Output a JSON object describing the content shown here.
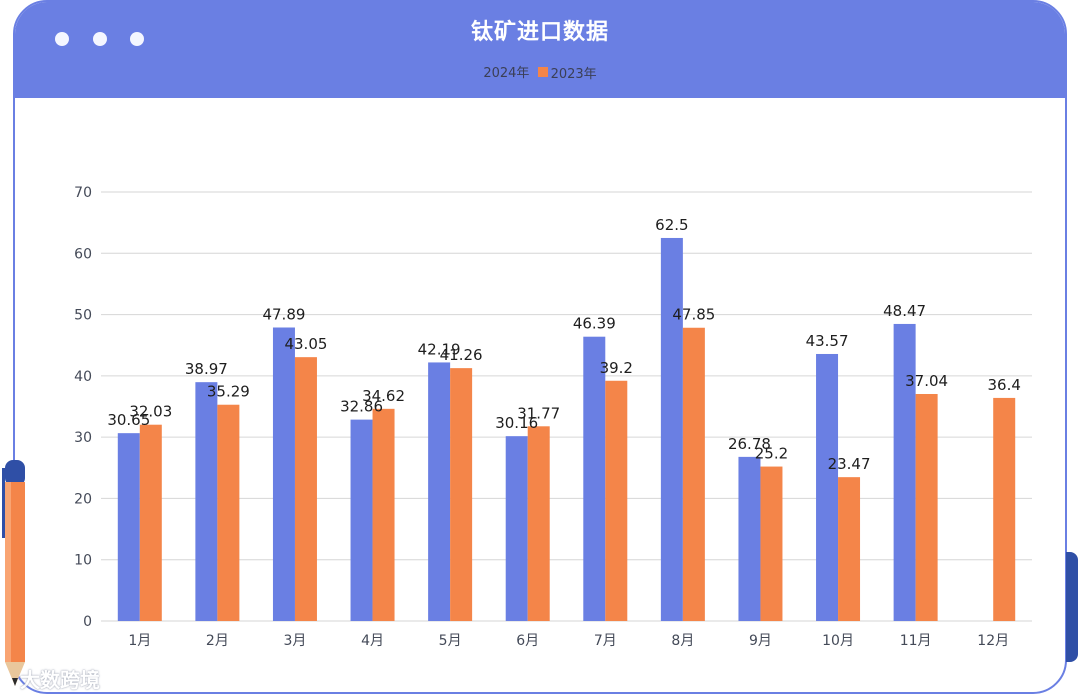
{
  "header": {
    "title": "钛矿进口数据"
  },
  "colors": {
    "series_2024": "#6a7fe3",
    "series_2023": "#f48549",
    "frame": "#6a7fe3",
    "grid": "#d6d6d6"
  },
  "watermark": "大数跨境",
  "chart_data": {
    "type": "bar",
    "title": "钛矿进口数据",
    "categories": [
      "1月",
      "2月",
      "3月",
      "4月",
      "5月",
      "6月",
      "7月",
      "8月",
      "9月",
      "10月",
      "11月",
      "12月"
    ],
    "series": [
      {
        "name": "2024年",
        "values": [
          30.65,
          38.97,
          47.89,
          32.86,
          42.19,
          30.16,
          46.39,
          62.5,
          26.78,
          43.57,
          48.47,
          null
        ]
      },
      {
        "name": "2023年",
        "values": [
          32.03,
          35.29,
          43.05,
          34.62,
          41.26,
          31.77,
          39.2,
          47.85,
          25.2,
          23.47,
          37.04,
          36.4
        ]
      }
    ],
    "ylim": [
      0,
      70
    ],
    "yticks": [
      0,
      10,
      20,
      30,
      40,
      50,
      60,
      70
    ],
    "grid": true,
    "legend": "top-center"
  }
}
